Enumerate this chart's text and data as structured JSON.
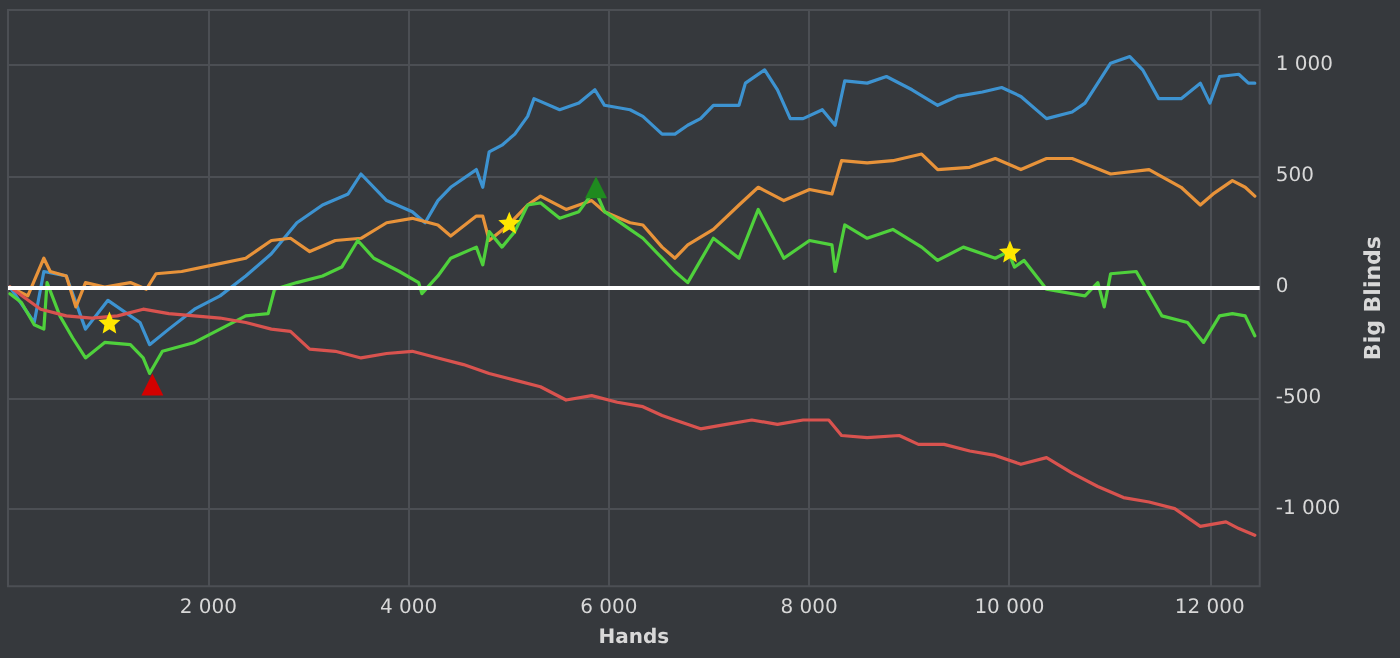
{
  "chart_data": {
    "type": "line",
    "xlabel": "Hands",
    "ylabel": "Big Blinds",
    "xlim": [
      0,
      12500
    ],
    "ylim": [
      -1350,
      1250
    ],
    "xticks": [
      {
        "value": 2000,
        "label": "2 000"
      },
      {
        "value": 4000,
        "label": "4 000"
      },
      {
        "value": 6000,
        "label": "6 000"
      },
      {
        "value": 8000,
        "label": "8 000"
      },
      {
        "value": 10000,
        "label": "10 000"
      },
      {
        "value": 12000,
        "label": "12 000"
      }
    ],
    "yticks": [
      {
        "value": -1000,
        "label": "-1 000"
      },
      {
        "value": -500,
        "label": "-500"
      },
      0,
      500,
      {
        "value": 1000,
        "label": "1 000"
      }
    ],
    "grid": true,
    "marker": "none",
    "line_style": "solid",
    "ref_lines": [
      {
        "axis": "y",
        "value": 0,
        "color": "#ffffff"
      }
    ],
    "series": [
      {
        "color": "#3d93d1",
        "x": [
          19,
          262,
          358,
          582,
          774,
          998,
          1318,
          1414,
          1606,
          1862,
          2118,
          2374,
          2630,
          2885,
          3141,
          3397,
          3525,
          3781,
          4037,
          4165,
          4293,
          4421,
          4677,
          4741,
          4805,
          4933,
          5061,
          5189,
          5253,
          5509,
          5701,
          5861,
          5957,
          6212,
          6340,
          6532,
          6660,
          6788,
          6916,
          7044,
          7300,
          7364,
          7556,
          7684,
          7812,
          7940,
          8132,
          8260,
          8356,
          8580,
          8772,
          9028,
          9284,
          9476,
          9731,
          9923,
          10115,
          10371,
          10627,
          10755,
          11011,
          11203,
          11331,
          11491,
          11715,
          11907,
          12003,
          12099,
          12291,
          12387,
          12451
        ],
        "values": [
          0,
          -160,
          70,
          50,
          -190,
          -60,
          -160,
          -260,
          -190,
          -100,
          -40,
          50,
          150,
          290,
          370,
          420,
          510,
          390,
          340,
          290,
          390,
          450,
          530,
          450,
          610,
          640,
          690,
          770,
          850,
          800,
          830,
          890,
          820,
          800,
          770,
          690,
          690,
          730,
          760,
          820,
          820,
          920,
          980,
          890,
          760,
          760,
          800,
          730,
          930,
          920,
          950,
          890,
          820,
          860,
          880,
          900,
          860,
          760,
          790,
          830,
          1010,
          1040,
          980,
          850,
          850,
          920,
          830,
          950,
          960,
          920,
          920
        ]
      },
      {
        "color": "#e8933a",
        "x": [
          19,
          198,
          358,
          422,
          582,
          678,
          774,
          966,
          1222,
          1382,
          1478,
          1734,
          2054,
          2374,
          2630,
          2821,
          3013,
          3269,
          3525,
          3781,
          4037,
          4293,
          4421,
          4677,
          4741,
          4805,
          4997,
          5189,
          5317,
          5573,
          5829,
          5957,
          6212,
          6340,
          6532,
          6660,
          6788,
          7044,
          7300,
          7492,
          7748,
          8004,
          8228,
          8324,
          8580,
          8836,
          9124,
          9284,
          9604,
          9859,
          10115,
          10371,
          10627,
          11011,
          11395,
          11715,
          11907,
          12035,
          12227,
          12355,
          12451
        ],
        "values": [
          0,
          -40,
          130,
          70,
          50,
          -90,
          20,
          0,
          20,
          -10,
          60,
          70,
          100,
          130,
          210,
          220,
          160,
          210,
          220,
          290,
          310,
          280,
          230,
          320,
          320,
          210,
          280,
          370,
          410,
          350,
          390,
          340,
          290,
          280,
          180,
          130,
          190,
          260,
          370,
          450,
          390,
          440,
          420,
          570,
          560,
          570,
          600,
          530,
          540,
          580,
          530,
          580,
          580,
          510,
          530,
          450,
          370,
          420,
          480,
          450,
          410
        ]
      },
      {
        "color": "#4fd13c",
        "x": [
          19,
          134,
          262,
          358,
          390,
          518,
          646,
          774,
          966,
          1222,
          1350,
          1414,
          1542,
          1862,
          2118,
          2374,
          2598,
          2662,
          2885,
          3141,
          3333,
          3493,
          3653,
          3909,
          4101,
          4133,
          4293,
          4421,
          4677,
          4741,
          4805,
          4933,
          5061,
          5189,
          5317,
          5509,
          5701,
          5861,
          5957,
          6212,
          6340,
          6532,
          6660,
          6788,
          6916,
          7044,
          7300,
          7492,
          7748,
          8004,
          8228,
          8260,
          8356,
          8580,
          8836,
          9124,
          9284,
          9540,
          9859,
          9987,
          10051,
          10147,
          10371,
          10755,
          10883,
          10947,
          11011,
          11267,
          11523,
          11779,
          11939,
          12099,
          12227,
          12355,
          12451
        ],
        "values": [
          -30,
          -70,
          -170,
          -190,
          20,
          -130,
          -230,
          -320,
          -250,
          -260,
          -320,
          -390,
          -290,
          -250,
          -190,
          -130,
          -120,
          -10,
          20,
          50,
          90,
          210,
          130,
          70,
          20,
          -30,
          50,
          130,
          180,
          100,
          250,
          180,
          250,
          370,
          380,
          310,
          340,
          440,
          340,
          260,
          220,
          130,
          70,
          20,
          120,
          220,
          130,
          350,
          130,
          210,
          190,
          70,
          280,
          220,
          260,
          180,
          120,
          180,
          130,
          160,
          90,
          120,
          -10,
          -40,
          20,
          -90,
          60,
          70,
          -130,
          -160,
          -250,
          -130,
          -120,
          -130,
          -220
        ]
      },
      {
        "color": "#d9534f",
        "x": [
          19,
          326,
          582,
          838,
          1094,
          1350,
          1606,
          1862,
          2118,
          2374,
          2630,
          2821,
          3013,
          3269,
          3525,
          3781,
          4037,
          4293,
          4549,
          4805,
          5061,
          5317,
          5573,
          5829,
          6084,
          6340,
          6532,
          6660,
          6916,
          7172,
          7428,
          7684,
          7940,
          8196,
          8324,
          8580,
          8900,
          9092,
          9348,
          9604,
          9859,
          10115,
          10371,
          10627,
          10883,
          11139,
          11395,
          11651,
          11907,
          12163,
          12291,
          12451
        ],
        "values": [
          0,
          -100,
          -130,
          -140,
          -130,
          -100,
          -120,
          -130,
          -140,
          -160,
          -190,
          -200,
          -280,
          -290,
          -320,
          -300,
          -290,
          -320,
          -350,
          -390,
          -420,
          -450,
          -510,
          -490,
          -520,
          -540,
          -580,
          -600,
          -640,
          -620,
          -600,
          -620,
          -600,
          -600,
          -670,
          -680,
          -670,
          -710,
          -710,
          -740,
          -760,
          -800,
          -770,
          -840,
          -900,
          -950,
          -970,
          -1000,
          -1080,
          -1060,
          -1090,
          -1120
        ]
      },
      {
        "type": "scatter",
        "marker": "star",
        "color": "#ffe600",
        "x": [
          1013,
          5006,
          10006
        ],
        "values": [
          -160,
          290,
          160
        ]
      },
      {
        "type": "scatter",
        "marker": "triangle",
        "color": "#d40000",
        "x": [
          1442
        ],
        "values": [
          -440
        ]
      },
      {
        "type": "scatter",
        "marker": "triangle",
        "color": "#1f8a1f",
        "x": [
          5872
        ],
        "values": [
          450
        ]
      }
    ]
  }
}
